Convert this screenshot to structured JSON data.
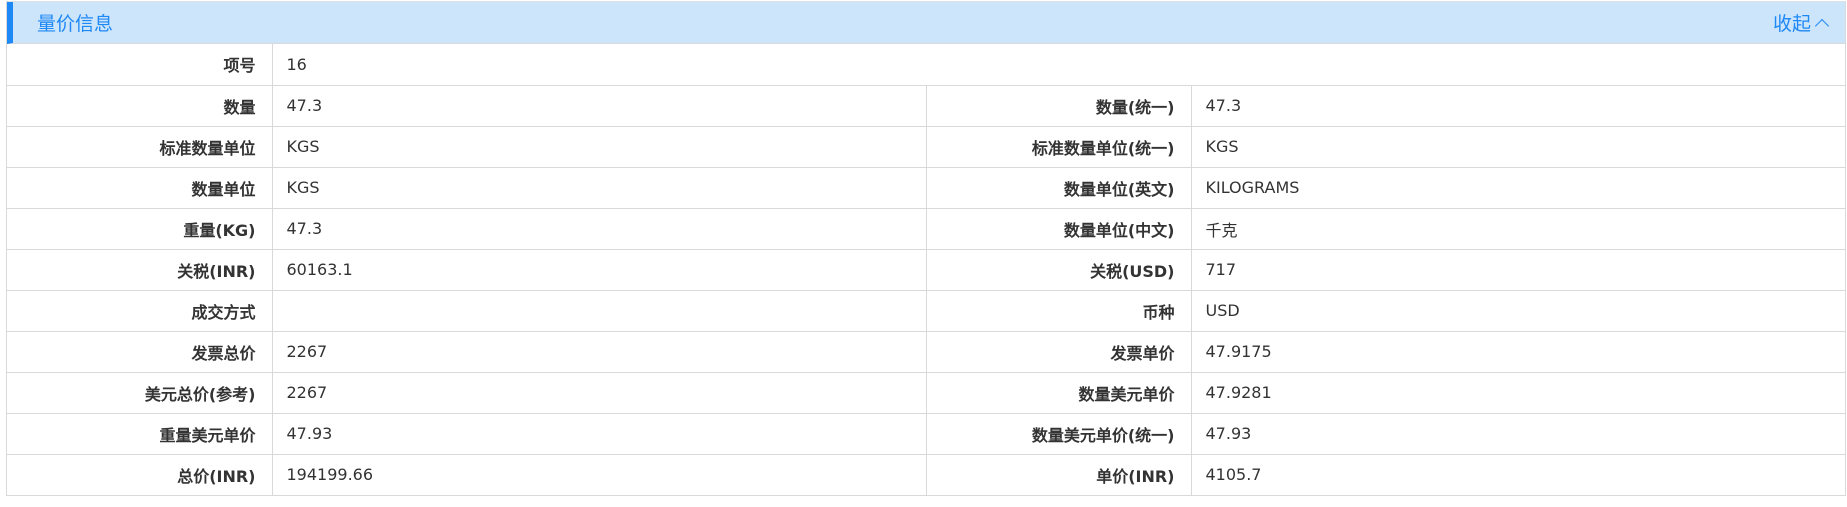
{
  "section": {
    "title": "量价信息",
    "toggle_label": "收起"
  },
  "item_no": {
    "label": "项号",
    "value": "16"
  },
  "rows": [
    {
      "l1": "数量",
      "v1": "47.3",
      "l2": "数量(统一)",
      "v2": "47.3"
    },
    {
      "l1": "标准数量单位",
      "v1": "KGS",
      "l2": "标准数量单位(统一)",
      "v2": "KGS"
    },
    {
      "l1": "数量单位",
      "v1": "KGS",
      "l2": "数量单位(英文)",
      "v2": "KILOGRAMS"
    },
    {
      "l1": "重量(KG)",
      "v1": "47.3",
      "l2": "数量单位(中文)",
      "v2": "千克"
    },
    {
      "l1": "关税(INR)",
      "v1": "60163.1",
      "l2": "关税(USD)",
      "v2": "717"
    },
    {
      "l1": "成交方式",
      "v1": "",
      "l2": "币种",
      "v2": "USD"
    },
    {
      "l1": "发票总价",
      "v1": "2267",
      "l2": "发票单价",
      "v2": "47.9175"
    },
    {
      "l1": "美元总价(参考)",
      "v1": "2267",
      "l2": "数量美元单价",
      "v2": "47.9281"
    },
    {
      "l1": "重量美元单价",
      "v1": "47.93",
      "l2": "数量美元单价(统一)",
      "v2": "47.93"
    },
    {
      "l1": "总价(INR)",
      "v1": "194199.66",
      "l2": "单价(INR)",
      "v2": "4105.7"
    }
  ]
}
